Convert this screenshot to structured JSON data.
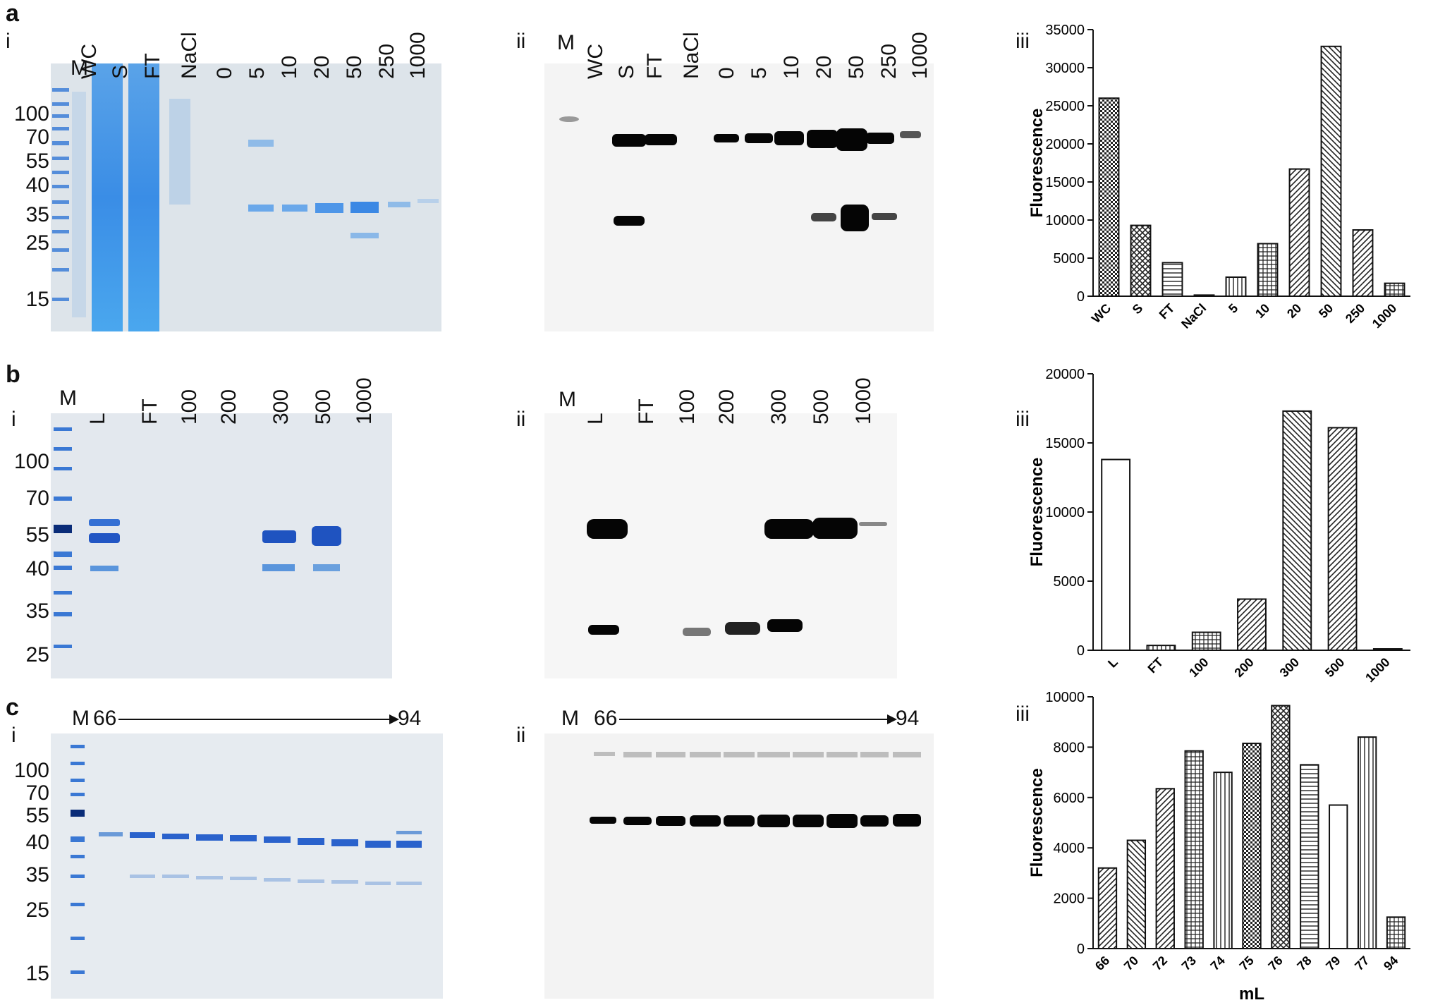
{
  "panels": {
    "a": {
      "letter": "a",
      "gel_i": {
        "roman": "i",
        "marker_lane": "M",
        "lanes": [
          "WC",
          "S",
          "FT",
          "NaCl",
          "0",
          "5",
          "10",
          "20",
          "50",
          "250",
          "1000"
        ],
        "markers": [
          "100",
          "70",
          "55",
          "40",
          "35",
          "25",
          "15"
        ]
      },
      "blot_ii": {
        "roman": "ii",
        "marker_lane": "M",
        "lanes": [
          "WC",
          "S",
          "FT",
          "NaCl",
          "0",
          "5",
          "10",
          "20",
          "50",
          "250",
          "1000"
        ]
      }
    },
    "b": {
      "letter": "b",
      "gel_i": {
        "roman": "i",
        "marker_lane": "M",
        "lanes": [
          "L",
          "FT",
          "100",
          "200",
          "300",
          "500",
          "1000"
        ],
        "markers": [
          "100",
          "70",
          "55",
          "40",
          "35",
          "25"
        ]
      },
      "blot_ii": {
        "roman": "ii",
        "marker_lane": "M",
        "lanes": [
          "L",
          "FT",
          "100",
          "200",
          "300",
          "500",
          "1000"
        ]
      }
    },
    "c": {
      "letter": "c",
      "gel_i": {
        "roman": "i",
        "marker_lane": "M",
        "range_start": "66",
        "range_end": "94",
        "markers": [
          "100",
          "70",
          "55",
          "40",
          "35",
          "25",
          "15"
        ]
      },
      "blot_ii": {
        "roman": "ii",
        "marker_lane": "M",
        "range_start": "66",
        "range_end": "94"
      }
    }
  },
  "colors": {
    "gel_background": "#dde5ec",
    "coomassie": "#2a6fd6",
    "blot_band": "#050505",
    "bar_edge": "#111111"
  },
  "chart_data": [
    {
      "type": "bar",
      "roman": "iii",
      "categories": [
        "WC",
        "S",
        "FT",
        "NaCl",
        "5",
        "10",
        "20",
        "50",
        "250",
        "1000"
      ],
      "values": [
        26000,
        9300,
        4400,
        150,
        2500,
        6900,
        16700,
        32800,
        8700,
        1700
      ],
      "ylabel": "Fluorescence",
      "xlabel": "",
      "ylim": [
        0,
        35000
      ],
      "yticks": [
        "0",
        "5000",
        "10000",
        "15000",
        "20000",
        "25000",
        "30000",
        "35000"
      ],
      "grid": false
    },
    {
      "type": "bar",
      "roman": "iii",
      "categories": [
        "L",
        "FT",
        "100",
        "200",
        "300",
        "500",
        "1000"
      ],
      "values": [
        13800,
        350,
        1300,
        3700,
        17300,
        16100,
        100
      ],
      "ylabel": "Fluorescence",
      "xlabel": "",
      "ylim": [
        0,
        20000
      ],
      "yticks": [
        "0",
        "5000",
        "10000",
        "15000",
        "20000"
      ],
      "grid": false
    },
    {
      "type": "bar",
      "roman": "iii",
      "categories": [
        "66",
        "70",
        "72",
        "73",
        "74",
        "75",
        "76",
        "78",
        "79",
        "77",
        "94"
      ],
      "values": [
        3200,
        4300,
        6350,
        7850,
        7000,
        8150,
        9650,
        7300,
        5700,
        8400,
        1250
      ],
      "ylabel": "Fluorescence",
      "xlabel": "mL",
      "ylim": [
        0,
        10000
      ],
      "yticks": [
        "0",
        "2000",
        "4000",
        "6000",
        "8000",
        "10000"
      ],
      "grid": false
    }
  ]
}
